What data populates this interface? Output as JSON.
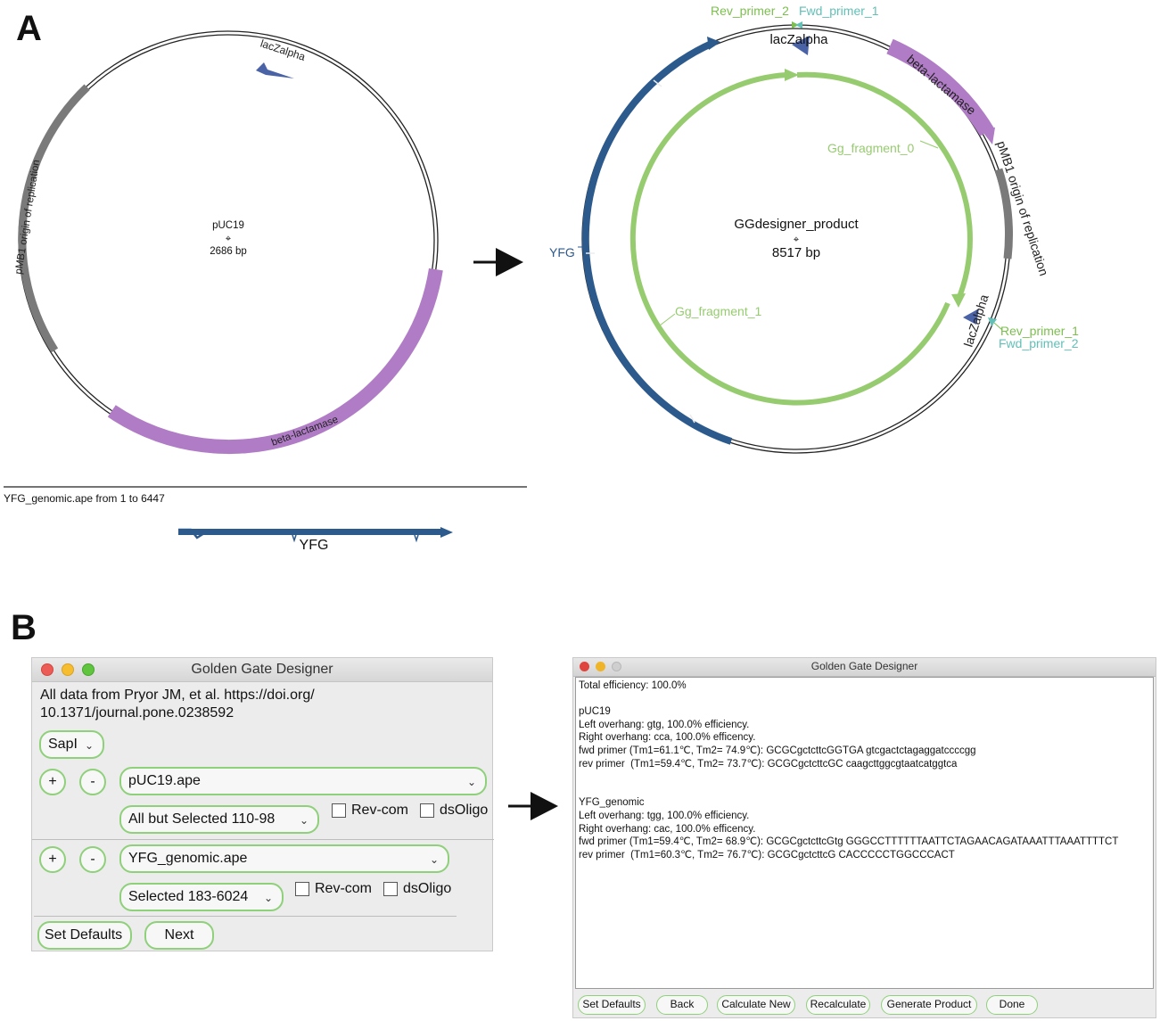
{
  "panels": {
    "a": "A",
    "b": "B"
  },
  "colors": {
    "backbone": "#222222",
    "gray_feature": "#7a7a7a",
    "purple_feature": "#b07cc6",
    "blue_arrow": "#4a62a6",
    "dark_blue": "#2d5a8c",
    "green_feature": "#96cc6f",
    "teal_label": "#62c0b7",
    "green_label": "#7cbf4e"
  },
  "plasmid_left": {
    "name": "pUC19",
    "size": "2686 bp",
    "features": {
      "ori": "pMB1 origin of replication",
      "lac": "lacZalpha",
      "bla": "beta-lactamase"
    }
  },
  "plasmid_right": {
    "name": "GGdesigner_product",
    "size": "8517 bp",
    "features": {
      "bla": "beta-lactamase",
      "ori": "pMB1 origin of replication",
      "lac_top": "lacZalpha",
      "lac_right": "lacZalpha",
      "yfg": "YFG",
      "frag0": "Gg_fragment_0",
      "frag1": "Gg_fragment_1"
    },
    "primers": {
      "rev2": "Rev_primer_2",
      "fwd1": "Fwd_primer_1",
      "rev1": "Rev_primer_1",
      "fwd2": "Fwd_primer_2"
    }
  },
  "linear_map": {
    "caption": "YFG_genomic.ape from 1 to 6447",
    "gene": "YFG"
  },
  "window_left": {
    "title": "Golden Gate Designer",
    "note": "All data from Pryor JM, et al. https://doi.org/ 10.1371/journal.pone.0238592",
    "enzyme": "SapI",
    "plus": "+",
    "minus": "-",
    "chevron": "⌄",
    "part1": {
      "file": "pUC19.ape",
      "region": "All but Selected 110-98",
      "revcom": "Rev-com",
      "dsoligo": "dsOligo"
    },
    "part2": {
      "file": "YFG_genomic.ape",
      "region": "Selected 183-6024",
      "revcom": "Rev-com",
      "dsoligo": "dsOligo"
    },
    "buttons": {
      "defaults": "Set Defaults",
      "next": "Next"
    }
  },
  "window_right": {
    "title": "Golden Gate Designer",
    "output": "Total efficiency: 100.0%\n\npUC19\nLeft overhang: gtg, 100.0% efficiency.\nRight overhang: cca, 100.0% efficency.\nfwd primer (Tm1=61.1℃, Tm2= 74.9℃): GCGCgctcttcGGTGA gtcgactctagaggatccccgg\nrev primer  (Tm1=59.4℃, Tm2= 73.7℃): GCGCgctcttcGC caagcttggcgtaatcatggtca\n\n\nYFG_genomic\nLeft overhang: tgg, 100.0% efficiency.\nRight overhang: cac, 100.0% efficency.\nfwd primer (Tm1=59.4℃, Tm2= 68.9℃): GCGCgctcttcGtg GGGCCTTTTTTAATTCTAGAACAGATAAATTTAAATTTTCT\nrev primer  (Tm1=60.3℃, Tm2= 76.7℃): GCGCgctcttcG CACCCCCTGGCCCACT",
    "buttons": {
      "defaults": "Set Defaults",
      "back": "Back",
      "calc": "Calculate New",
      "recalc": "Recalculate",
      "generate": "Generate Product",
      "done": "Done"
    }
  }
}
